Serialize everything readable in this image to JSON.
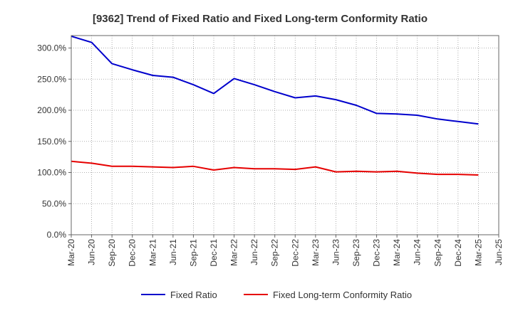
{
  "chart_data": {
    "type": "line",
    "title": "[9362]  Trend of Fixed Ratio and Fixed Long-term Conformity Ratio",
    "xlabel": "",
    "ylabel": "",
    "categories": [
      "Mar-20",
      "Jun-20",
      "Sep-20",
      "Dec-20",
      "Mar-21",
      "Jun-21",
      "Sep-21",
      "Dec-21",
      "Mar-22",
      "Jun-22",
      "Sep-22",
      "Dec-22",
      "Mar-23",
      "Jun-23",
      "Sep-23",
      "Dec-23",
      "Mar-24",
      "Jun-24",
      "Sep-24",
      "Dec-24",
      "Mar-25",
      "Jun-25"
    ],
    "yticks": [
      "0.0%",
      "50.0%",
      "100.0%",
      "150.0%",
      "200.0%",
      "250.0%",
      "300.0%"
    ],
    "ylim": [
      0,
      320
    ],
    "grid": true,
    "legend_position": "bottom",
    "series": [
      {
        "name": "Fixed Ratio",
        "color": "#0000cc",
        "values": [
          319,
          309,
          275,
          265,
          256,
          253,
          241,
          227,
          251,
          241,
          230,
          220,
          223,
          217,
          208,
          195,
          194,
          192,
          186,
          182,
          178,
          null
        ]
      },
      {
        "name": "Fixed Long-term Conformity Ratio",
        "color": "#e60000",
        "values": [
          118,
          115,
          110,
          110,
          109,
          108,
          110,
          104,
          108,
          106,
          106,
          105,
          109,
          101,
          102,
          101,
          102,
          99,
          97,
          97,
          96,
          null
        ]
      }
    ]
  }
}
